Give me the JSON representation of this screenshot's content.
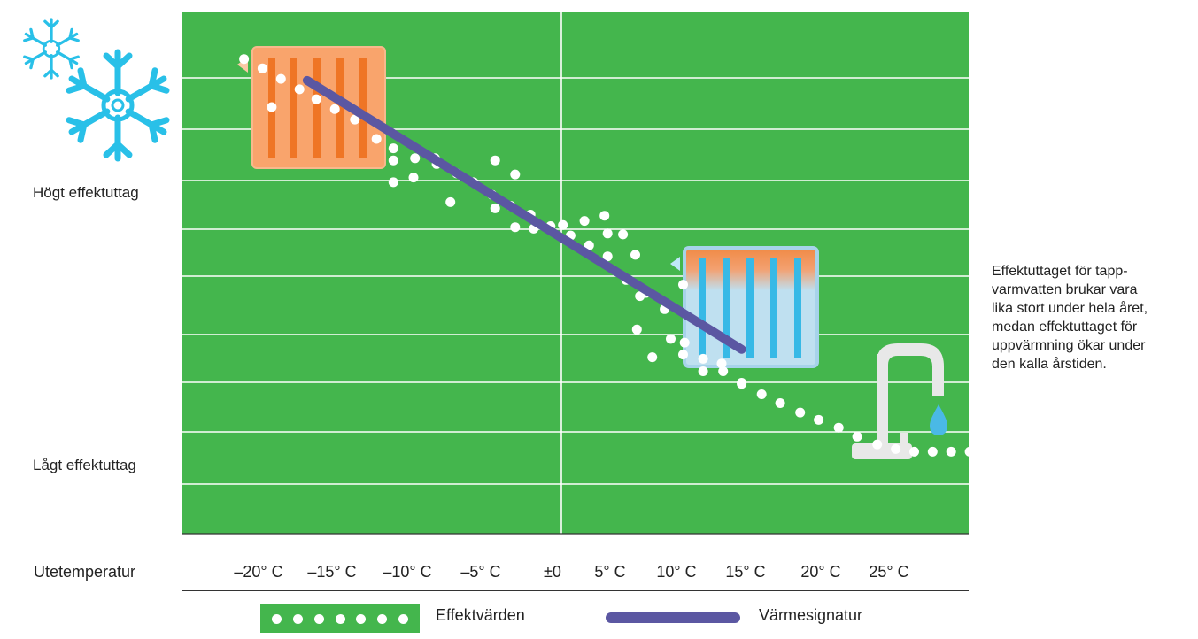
{
  "chart_data": {
    "type": "scatter",
    "xlabel": "Utetemperatur",
    "ylabel_high": "Högt effektuttag",
    "ylabel_low": "Lågt effektuttag",
    "x_tick_labels": [
      "–20° C",
      "–15° C",
      "–10° C",
      "–5° C",
      "±0",
      "5° C",
      "10° C",
      "15° C",
      "20° C",
      "25° C"
    ],
    "xlim": [
      -22,
      30
    ],
    "ylim": [
      0,
      100
    ],
    "series": [
      {
        "name": "Effektvärden",
        "kind": "points",
        "x": [
          -20.6,
          -19.4,
          -18.2,
          -17.0,
          -15.9,
          -14.7,
          -13.4,
          -12.0,
          -10.9,
          -9.5,
          -8.1,
          -6.8,
          -5.7,
          -4.5,
          -3.3,
          -2.0,
          -0.7,
          0.6,
          1.8,
          3.0,
          4.2,
          5.5,
          6.7,
          8.0,
          9.2,
          10.5,
          11.7,
          13.0,
          14.2,
          15.5,
          16.7,
          18.0,
          19.2,
          20.5,
          21.7,
          22.9,
          24.1,
          25.3,
          26.5,
          27.8,
          29.0,
          -18.8,
          -10.9,
          -9.6,
          -8.2,
          -10.9,
          -7.2,
          -4.3,
          -3.0,
          -4.3,
          -3.0,
          -1.8,
          0.1,
          1.5,
          2.8,
          4.0,
          4.8,
          3.0,
          5.1,
          5.9,
          4.9,
          7.9,
          7.1,
          7.9,
          9.2,
          10.4,
          11.7
        ],
        "y": [
          90.9,
          89.1,
          87.1,
          85.1,
          83.2,
          81.3,
          79.3,
          75.6,
          73.8,
          71.9,
          70.8,
          69.0,
          67.3,
          64.9,
          62.8,
          61.1,
          58.9,
          57.1,
          55.2,
          53.1,
          48.6,
          46.1,
          43.0,
          36.6,
          33.5,
          31.1,
          28.7,
          26.7,
          25.0,
          23.2,
          21.8,
          20.3,
          18.6,
          17.1,
          16.2,
          15.7,
          15.7,
          15.7,
          15.7,
          15.7,
          15.7,
          81.7,
          71.5,
          68.2,
          71.9,
          67.3,
          63.5,
          71.5,
          68.8,
          62.3,
          58.7,
          58.4,
          59.1,
          59.9,
          60.9,
          57.3,
          53.4,
          57.5,
          45.5,
          33.8,
          39.1,
          47.7,
          37.3,
          34.3,
          31.1,
          32.6,
          28.9
        ]
      },
      {
        "name": "Värmesignatur",
        "kind": "line",
        "x": [
          -16.5,
          11.7
        ],
        "y": [
          86.8,
          35.3
        ]
      }
    ],
    "grid": true,
    "legend_position": "bottom"
  },
  "annotation": "Effektuttaget för tappvarmvatten brukar vara lika stort under hela året, medan effektuttaget för uppvärmning ökar under den kalla årstiden.",
  "annotation_lines": [
    "Effektuttaget för tapp-",
    "varmvatten brukar vara",
    "lika stort under hela året,",
    "medan effektuttaget för",
    "uppvärmning ökar under",
    "den kalla årstiden."
  ],
  "colors": {
    "plot_background": "#44b64d",
    "gridline": "#ffffff",
    "points": "#ffffff",
    "signature_line": "#5b57a2",
    "snowflake": "#29c0e8",
    "radiator_hot": "#f9a46c",
    "radiator_stripe": "#ef7525",
    "radiator_cool": "#bfe0f0",
    "tap": "#e8e8e8",
    "water_drop": "#4ab9e6"
  },
  "icons": [
    "snowflake-icon",
    "hot-radiator-icon",
    "warm-radiator-icon",
    "water-tap-icon",
    "water-drop-icon"
  ]
}
